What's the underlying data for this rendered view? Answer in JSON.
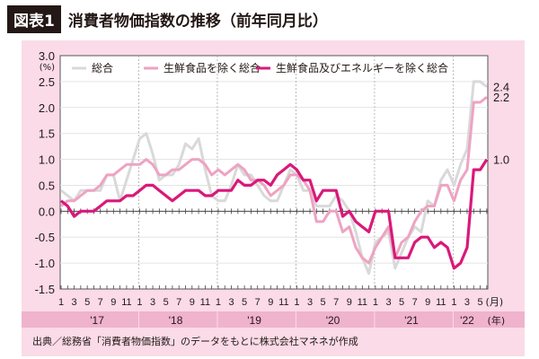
{
  "figure_label": "図表1",
  "title": "消費者物価指数の推移（前年同月比）",
  "source": "出典／総務省「消費者物価指数」のデータをもとに株式会社マネネが作成",
  "colors": {
    "total": "#d9d9d9",
    "core": "#eea3c2",
    "core_core": "#d9197a",
    "frame": "#fadbe7",
    "year_band": "#f0b3cd"
  },
  "chart_data": {
    "type": "line",
    "title": "消費者物価指数の推移（前年同月比）",
    "ylabel": "(%)",
    "ylim": [
      -1.5,
      3.0
    ],
    "yticks": [
      "3.0",
      "2.5",
      "2.0",
      "1.5",
      "1.0",
      "0.5",
      "0.0",
      "-0.5",
      "-1.0",
      "-1.5"
    ],
    "month_ticks": [
      "1",
      "3",
      "5",
      "7",
      "9",
      "11",
      "1",
      "3",
      "5",
      "7",
      "9",
      "11",
      "1",
      "3",
      "5",
      "7",
      "9",
      "11",
      "1",
      "3",
      "5",
      "7",
      "9",
      "11",
      "1",
      "3",
      "5",
      "7",
      "9",
      "11",
      "1",
      "3",
      "5"
    ],
    "month_unit": "(月)",
    "years": [
      "'17",
      "'18",
      "'19",
      "'20",
      "'21",
      "'22"
    ],
    "year_unit": "(年)",
    "x_start": "2017-01",
    "grid": true,
    "legend_position": "top",
    "series": [
      {
        "name": "総合",
        "key": "total",
        "end_label": "2.4",
        "values": [
          0.4,
          0.3,
          0.2,
          0.4,
          0.4,
          0.4,
          0.4,
          0.7,
          0.7,
          0.2,
          0.6,
          1.0,
          1.4,
          1.5,
          1.1,
          0.6,
          0.7,
          0.7,
          0.9,
          1.3,
          1.2,
          1.4,
          0.8,
          0.3,
          0.2,
          0.2,
          0.5,
          0.9,
          0.7,
          0.7,
          0.5,
          0.3,
          0.2,
          0.2,
          0.5,
          0.8,
          0.7,
          0.4,
          0.4,
          0.1,
          0.1,
          0.1,
          0.3,
          0.2,
          0.0,
          -0.4,
          -0.9,
          -1.2,
          -0.6,
          -0.5,
          -0.4,
          -1.1,
          -0.8,
          -0.5,
          -0.3,
          -0.4,
          0.2,
          0.1,
          0.6,
          0.8,
          0.5,
          0.9,
          1.2,
          2.5,
          2.5,
          2.4
        ]
      },
      {
        "name": "生鮮食品を除く総合",
        "key": "core",
        "end_label": "2.2",
        "values": [
          0.1,
          0.2,
          0.2,
          0.3,
          0.4,
          0.4,
          0.5,
          0.7,
          0.7,
          0.8,
          0.9,
          0.9,
          0.9,
          1.0,
          0.9,
          0.7,
          0.7,
          0.8,
          0.8,
          0.9,
          1.0,
          1.0,
          0.9,
          0.7,
          0.8,
          0.7,
          0.8,
          0.9,
          0.8,
          0.6,
          0.6,
          0.5,
          0.3,
          0.4,
          0.5,
          0.7,
          0.7,
          0.6,
          0.4,
          -0.2,
          -0.2,
          0.0,
          0.0,
          -0.4,
          -0.3,
          -0.7,
          -0.9,
          -1.0,
          -0.7,
          -0.5,
          -0.3,
          -0.9,
          -0.6,
          -0.5,
          -0.2,
          0.0,
          0.1,
          0.1,
          0.5,
          0.5,
          0.2,
          0.6,
          0.8,
          2.1,
          2.1,
          2.2
        ]
      },
      {
        "name": "生鮮食品及びエネルギーを除く総合",
        "key": "core_core",
        "end_label": "1.0",
        "values": [
          0.2,
          0.1,
          -0.1,
          0.0,
          0.0,
          0.0,
          0.1,
          0.2,
          0.2,
          0.2,
          0.3,
          0.3,
          0.4,
          0.5,
          0.5,
          0.4,
          0.3,
          0.2,
          0.3,
          0.4,
          0.4,
          0.4,
          0.3,
          0.3,
          0.4,
          0.4,
          0.4,
          0.6,
          0.5,
          0.5,
          0.6,
          0.6,
          0.5,
          0.7,
          0.8,
          0.9,
          0.8,
          0.6,
          0.6,
          0.2,
          0.4,
          0.4,
          0.4,
          -0.1,
          0.0,
          -0.2,
          -0.3,
          -0.4,
          0.0,
          0.0,
          0.0,
          -0.9,
          -0.9,
          -0.9,
          -0.6,
          -0.5,
          -0.5,
          -0.7,
          -0.6,
          -0.7,
          -1.1,
          -1.0,
          -0.7,
          0.8,
          0.8,
          1.0
        ]
      }
    ]
  }
}
